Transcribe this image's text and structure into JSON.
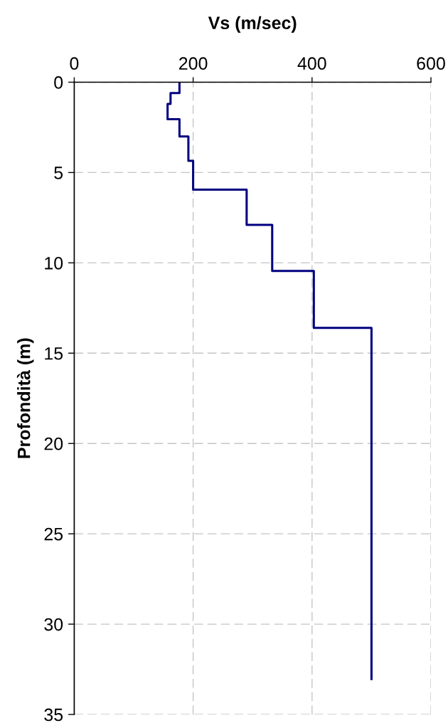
{
  "chart_data": {
    "type": "line",
    "xlabel": "Vs (m/sec)",
    "ylabel": "Profondità (m)",
    "xlim": [
      0,
      600
    ],
    "xticks": [
      0,
      200,
      400,
      600
    ],
    "ylim": [
      35,
      0
    ],
    "yticks": [
      0,
      5,
      10,
      15,
      20,
      25,
      30,
      35
    ],
    "grid": true,
    "marker": "none",
    "line_style": "solid",
    "series": [
      {
        "color": "#000080",
        "x": [
          177,
          177,
          162,
          162,
          157,
          157,
          177,
          177,
          192,
          192,
          200,
          200,
          290,
          290,
          333,
          333,
          403,
          403,
          500,
          500
        ],
        "values": [
          0,
          0.6,
          0.6,
          1.2,
          1.2,
          2.05,
          2.05,
          3.0,
          3.0,
          4.35,
          4.35,
          5.95,
          5.95,
          7.9,
          7.9,
          10.45,
          10.45,
          13.6,
          13.6,
          33.1
        ]
      }
    ]
  }
}
